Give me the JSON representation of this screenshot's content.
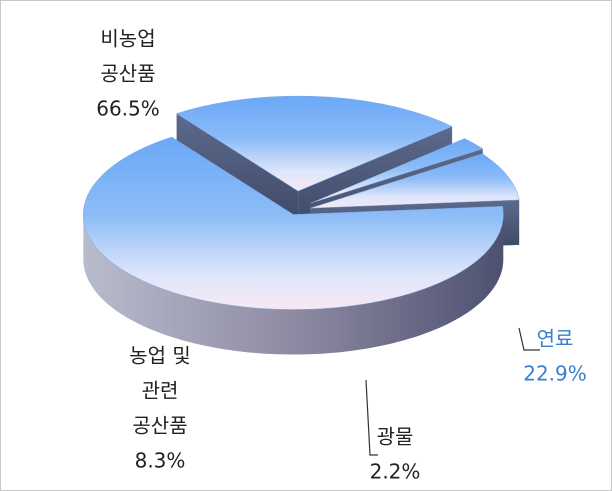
{
  "chart_data": {
    "type": "pie",
    "categories": [
      [
        "비농업",
        "공산품"
      ],
      [
        "연료"
      ],
      [
        "광물"
      ],
      [
        "농업 및",
        "관련",
        "공산품"
      ]
    ],
    "values": [
      66.5,
      22.9,
      2.2,
      8.3
    ],
    "value_labels": [
      "66.5%",
      "22.9%",
      "2.2%",
      "8.3%"
    ],
    "label_colors": [
      "#222222",
      "#3a7fcf",
      "#222222",
      "#222222"
    ]
  }
}
